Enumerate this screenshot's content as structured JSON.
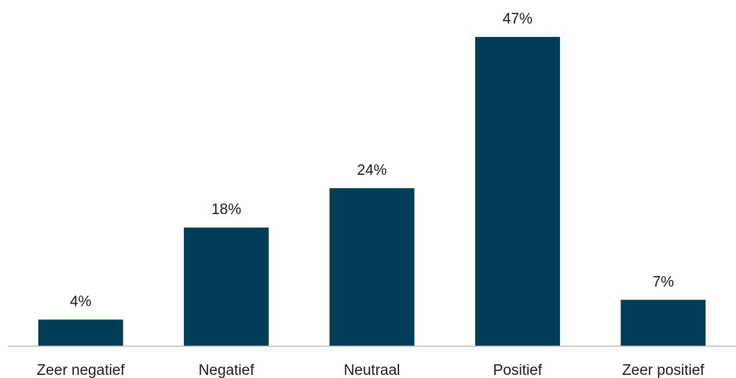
{
  "chart_data": {
    "type": "bar",
    "categories": [
      "Zeer negatief",
      "Negatief",
      "Neutraal",
      "Positief",
      "Zeer positief"
    ],
    "values": [
      4,
      18,
      24,
      47,
      7
    ],
    "value_labels": [
      "4%",
      "18%",
      "24%",
      "47%",
      "7%"
    ],
    "title": "",
    "xlabel": "",
    "ylabel": "",
    "ylim": [
      0,
      50
    ],
    "grid": false,
    "legend": "none",
    "colors": {
      "bar": "#003d59",
      "axis": "#bfbfbf",
      "text": "#1f1f1f"
    }
  }
}
